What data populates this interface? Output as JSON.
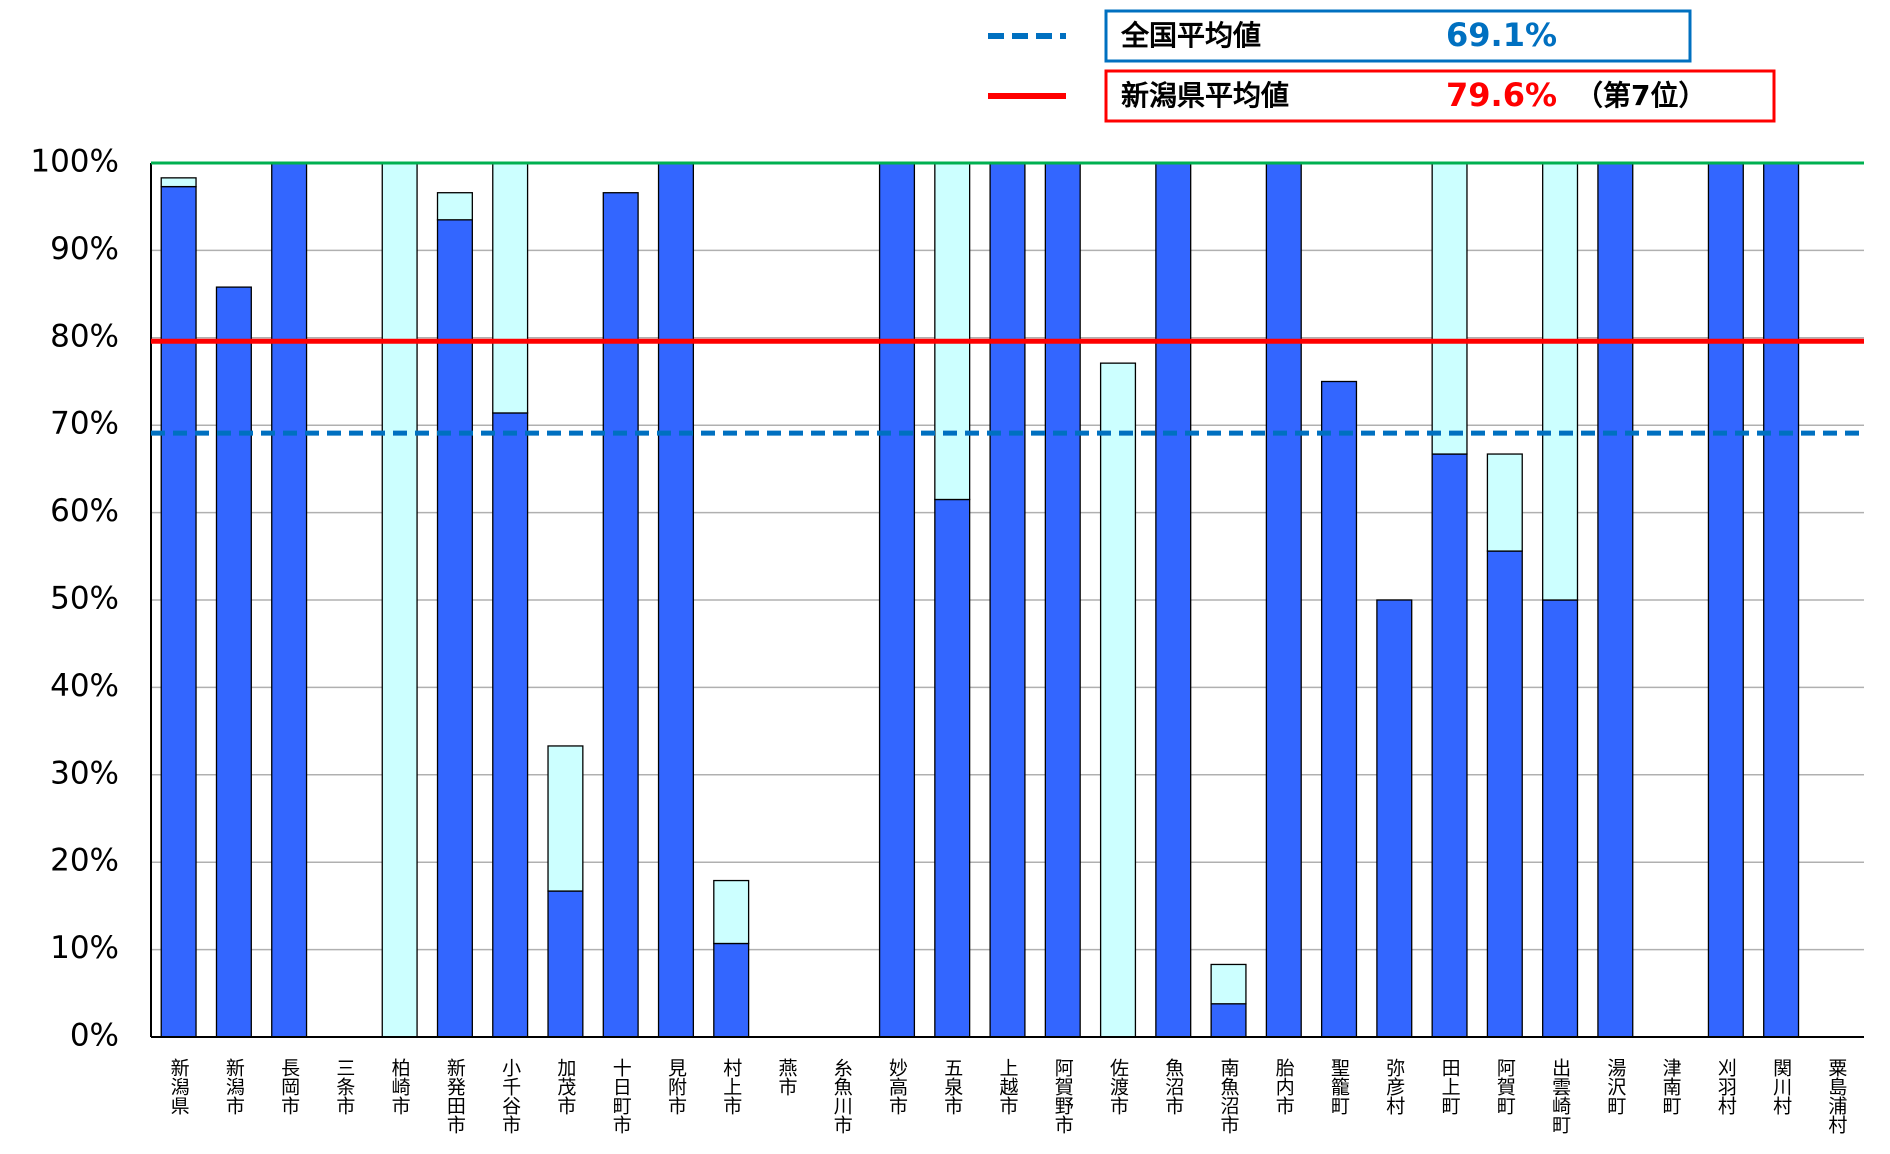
{
  "chart_data": {
    "type": "stacked_bar",
    "categories": [
      "新潟県",
      "新潟市",
      "長岡市",
      "三条市",
      "柏崎市",
      "新発田市",
      "小千谷市",
      "加茂市",
      "十日町市",
      "見附市",
      "村上市",
      "燕市",
      "糸魚川市",
      "妙高市",
      "五泉市",
      "上越市",
      "阿賀野市",
      "佐渡市",
      "魚沼市",
      "南魚沼市",
      "胎内市",
      "聖籠町",
      "弥彦村",
      "田上町",
      "阿賀町",
      "出雲崎町",
      "湯沢町",
      "津南町",
      "刈羽村",
      "関川村",
      "粟島浦村"
    ],
    "series": [
      {
        "color": "#3366ff",
        "values": [
          97.3,
          85.8,
          100,
          0,
          0,
          93.5,
          71.4,
          16.7,
          96.6,
          100,
          10.7,
          0,
          0,
          100,
          61.5,
          100,
          100,
          0,
          100,
          3.8,
          100,
          75,
          50,
          66.7,
          55.6,
          50,
          100,
          0,
          100,
          100,
          0
        ]
      },
      {
        "color": "#ccffff",
        "values": [
          1.0,
          0,
          0,
          0,
          100,
          3.1,
          28.6,
          16.6,
          0,
          0,
          7.2,
          0,
          0,
          0,
          38.5,
          0,
          0,
          77.1,
          0,
          4.5,
          0,
          0,
          0,
          33.3,
          11.1,
          50,
          0,
          0,
          0,
          0,
          0
        ]
      }
    ],
    "reference_lines": [
      {
        "name": "全国平均値",
        "value": 69.1,
        "value_label": "69.1%",
        "color": "#0070c0",
        "dashed": true
      },
      {
        "name": "新潟県平均値",
        "value": 79.6,
        "value_label": "79.6%",
        "note": "（第7位）",
        "color": "#ff0000",
        "dashed": false
      },
      {
        "value": 100,
        "color": "#00b050",
        "dashed": false
      }
    ],
    "ylim": [
      0,
      100
    ],
    "yticks": [
      {
        "value": 0,
        "label": "0%"
      },
      {
        "value": 10,
        "label": "10%"
      },
      {
        "value": 20,
        "label": "20%"
      },
      {
        "value": 30,
        "label": "30%"
      },
      {
        "value": 40,
        "label": "40%"
      },
      {
        "value": 50,
        "label": "50%"
      },
      {
        "value": 60,
        "label": "60%"
      },
      {
        "value": 70,
        "label": "70%"
      },
      {
        "value": 80,
        "label": "80%"
      },
      {
        "value": 90,
        "label": "90%"
      },
      {
        "value": 100,
        "label": "100%"
      }
    ],
    "grid": true
  }
}
